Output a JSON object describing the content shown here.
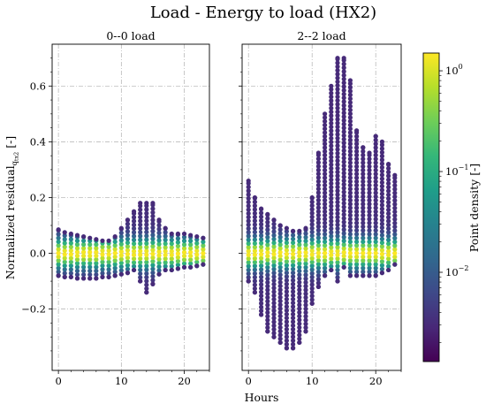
{
  "figure": {
    "title": "Load - Energy to load (HX2)",
    "xlabel": "Hours",
    "ylabel_main": "Normalized residual",
    "ylabel_sub": "q",
    "ylabel_subsub": "tx2",
    "ylabel_unit": " [-]"
  },
  "colorbar": {
    "label": "Point density [-]",
    "scale": "log",
    "range": [
      0.0013,
      1.5
    ],
    "ticks": [
      {
        "value": 1,
        "base": "10",
        "exp": "0"
      },
      {
        "value": 0.1,
        "base": "10",
        "exp": "−1"
      },
      {
        "value": 0.01,
        "base": "10",
        "exp": "−2"
      }
    ],
    "colormap": [
      "#440154",
      "#482878",
      "#3e4989",
      "#31688e",
      "#26828e",
      "#1f9e89",
      "#35b779",
      "#6ece58",
      "#b5de2b",
      "#fde725"
    ]
  },
  "chart_data": [
    {
      "type": "scatter",
      "title": "0--0 load",
      "x_range": [
        -1,
        24
      ],
      "ylim": [
        -0.42,
        0.75
      ],
      "xticks": [
        0,
        10,
        20
      ],
      "yticks": [
        -0.2,
        0.0,
        0.2,
        0.4,
        0.6
      ],
      "ytick_labels": [
        "−0.2",
        "0.0",
        "0.2",
        "0.4",
        "0.6"
      ],
      "grid": true,
      "x_hours": [
        0,
        1,
        2,
        3,
        4,
        5,
        6,
        7,
        8,
        9,
        10,
        11,
        12,
        13,
        14,
        15,
        16,
        17,
        18,
        19,
        20,
        21,
        22,
        23
      ],
      "y_max": [
        0.085,
        0.075,
        0.07,
        0.065,
        0.06,
        0.055,
        0.05,
        0.045,
        0.045,
        0.06,
        0.09,
        0.12,
        0.15,
        0.18,
        0.18,
        0.18,
        0.12,
        0.09,
        0.07,
        0.07,
        0.07,
        0.065,
        0.06,
        0.055
      ],
      "y_min": [
        -0.08,
        -0.085,
        -0.085,
        -0.09,
        -0.09,
        -0.09,
        -0.09,
        -0.085,
        -0.085,
        -0.08,
        -0.075,
        -0.07,
        -0.06,
        -0.1,
        -0.14,
        -0.11,
        -0.075,
        -0.06,
        -0.06,
        -0.055,
        -0.05,
        -0.05,
        -0.045,
        -0.04
      ]
    },
    {
      "type": "scatter",
      "title": "2--2 load",
      "x_range": [
        -1,
        24
      ],
      "ylim": [
        -0.42,
        0.75
      ],
      "xticks": [
        0,
        10,
        20
      ],
      "xtick_labels": [
        "0",
        "10",
        "20"
      ],
      "yticks": [
        -0.2,
        0.0,
        0.2,
        0.4,
        0.6
      ],
      "grid": true,
      "x_hours": [
        0,
        1,
        2,
        3,
        4,
        5,
        6,
        7,
        8,
        9,
        10,
        11,
        12,
        13,
        14,
        15,
        16,
        17,
        18,
        19,
        20,
        21,
        22,
        23
      ],
      "y_max": [
        0.26,
        0.2,
        0.16,
        0.14,
        0.12,
        0.1,
        0.09,
        0.08,
        0.08,
        0.09,
        0.2,
        0.36,
        0.5,
        0.6,
        0.7,
        0.7,
        0.62,
        0.44,
        0.38,
        0.36,
        0.42,
        0.4,
        0.32,
        0.28
      ],
      "y_min": [
        -0.1,
        -0.14,
        -0.22,
        -0.28,
        -0.3,
        -0.32,
        -0.34,
        -0.34,
        -0.32,
        -0.28,
        -0.18,
        -0.12,
        -0.08,
        -0.06,
        -0.1,
        -0.05,
        -0.08,
        -0.08,
        -0.08,
        -0.08,
        -0.08,
        -0.07,
        -0.06,
        -0.04
      ]
    }
  ]
}
